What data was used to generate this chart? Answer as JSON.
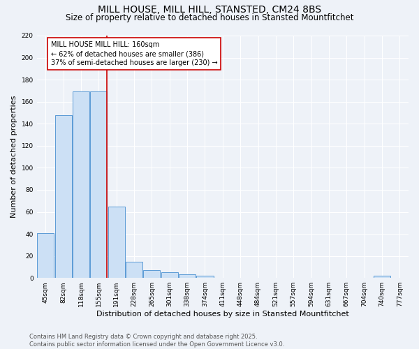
{
  "title": "MILL HOUSE, MILL HILL, STANSTED, CM24 8BS",
  "subtitle": "Size of property relative to detached houses in Stansted Mountfitchet",
  "xlabel": "Distribution of detached houses by size in Stansted Mountfitchet",
  "ylabel": "Number of detached properties",
  "bar_labels": [
    "45sqm",
    "82sqm",
    "118sqm",
    "155sqm",
    "191sqm",
    "228sqm",
    "265sqm",
    "301sqm",
    "338sqm",
    "374sqm",
    "411sqm",
    "448sqm",
    "484sqm",
    "521sqm",
    "557sqm",
    "594sqm",
    "631sqm",
    "667sqm",
    "704sqm",
    "740sqm",
    "777sqm"
  ],
  "bar_values": [
    41,
    148,
    169,
    169,
    65,
    15,
    7,
    5,
    3,
    2,
    0,
    0,
    0,
    0,
    0,
    0,
    0,
    0,
    0,
    2,
    0
  ],
  "bar_color": "#cce0f5",
  "bar_edge_color": "#5b9bd5",
  "annotation_text": "MILL HOUSE MILL HILL: 160sqm\n← 62% of detached houses are smaller (386)\n37% of semi-detached houses are larger (230) →",
  "annotation_box_color": "#ffffff",
  "annotation_box_edge": "#cc0000",
  "vline_color": "#cc0000",
  "vline_x_index": 3,
  "ylim": [
    0,
    220
  ],
  "yticks": [
    0,
    20,
    40,
    60,
    80,
    100,
    120,
    140,
    160,
    180,
    200,
    220
  ],
  "footer": "Contains HM Land Registry data © Crown copyright and database right 2025.\nContains public sector information licensed under the Open Government Licence v3.0.",
  "bg_color": "#eef2f8",
  "grid_color": "#ffffff",
  "title_fontsize": 10,
  "subtitle_fontsize": 8.5,
  "tick_fontsize": 6.5,
  "ylabel_fontsize": 8,
  "xlabel_fontsize": 8,
  "footer_fontsize": 6,
  "ann_fontsize": 7
}
